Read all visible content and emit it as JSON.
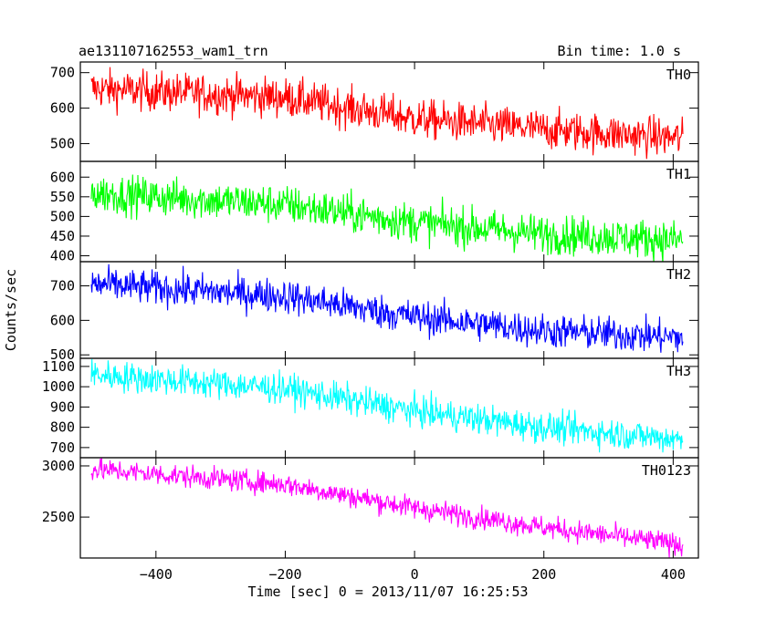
{
  "header": {
    "title": "ae131107162553_wam1_trn",
    "bin_time": "Bin time: 1.0 s"
  },
  "chart_data": {
    "type": "line",
    "title": "ae131107162553_wam1_trn",
    "xlabel": "Time [sec] 0 = 2013/11/07 16:25:53",
    "ylabel": "Counts/sec",
    "xlim": [
      -500,
      415
    ],
    "x_range": [
      -500,
      415
    ],
    "x_ticks": [
      -400,
      -200,
      0,
      200,
      400
    ],
    "x_tick_labels": [
      "−400",
      "−200",
      "0",
      "200",
      "400"
    ],
    "sample_step": 1,
    "grid": false,
    "panels": [
      {
        "name": "TH0",
        "color": "#ff0000",
        "ylim": [
          450,
          730
        ],
        "ticks": [
          500,
          600,
          700
        ],
        "trend": [
          {
            "x": -500,
            "y": 655
          },
          {
            "x": -200,
            "y": 630
          },
          {
            "x": 0,
            "y": 570
          },
          {
            "x": 200,
            "y": 540
          },
          {
            "x": 415,
            "y": 515
          }
        ],
        "noise": 28
      },
      {
        "name": "TH1",
        "color": "#00ff00",
        "ylim": [
          385,
          640
        ],
        "ticks": [
          400,
          450,
          500,
          550,
          600
        ],
        "trend": [
          {
            "x": -500,
            "y": 560
          },
          {
            "x": -200,
            "y": 530
          },
          {
            "x": 0,
            "y": 485
          },
          {
            "x": 200,
            "y": 455
          },
          {
            "x": 415,
            "y": 440
          }
        ],
        "noise": 25
      },
      {
        "name": "TH2",
        "color": "#0000ff",
        "ylim": [
          490,
          770
        ],
        "ticks": [
          500,
          600,
          700
        ],
        "trend": [
          {
            "x": -500,
            "y": 705
          },
          {
            "x": -200,
            "y": 670
          },
          {
            "x": 0,
            "y": 610
          },
          {
            "x": 200,
            "y": 570
          },
          {
            "x": 415,
            "y": 550
          }
        ],
        "noise": 25
      },
      {
        "name": "TH3",
        "color": "#00ffff",
        "ylim": [
          650,
          1140
        ],
        "ticks": [
          700,
          800,
          900,
          1000,
          1100
        ],
        "trend": [
          {
            "x": -500,
            "y": 1060
          },
          {
            "x": -200,
            "y": 990
          },
          {
            "x": 0,
            "y": 880
          },
          {
            "x": 200,
            "y": 800
          },
          {
            "x": 415,
            "y": 740
          }
        ],
        "noise": 38
      },
      {
        "name": "TH0123",
        "color": "#ff00ff",
        "ylim": [
          2100,
          3080
        ],
        "ticks": [
          2500,
          3000
        ],
        "trend": [
          {
            "x": -500,
            "y": 2970
          },
          {
            "x": -200,
            "y": 2820
          },
          {
            "x": 0,
            "y": 2590
          },
          {
            "x": 200,
            "y": 2400
          },
          {
            "x": 415,
            "y": 2230
          }
        ],
        "noise": 55
      }
    ]
  }
}
